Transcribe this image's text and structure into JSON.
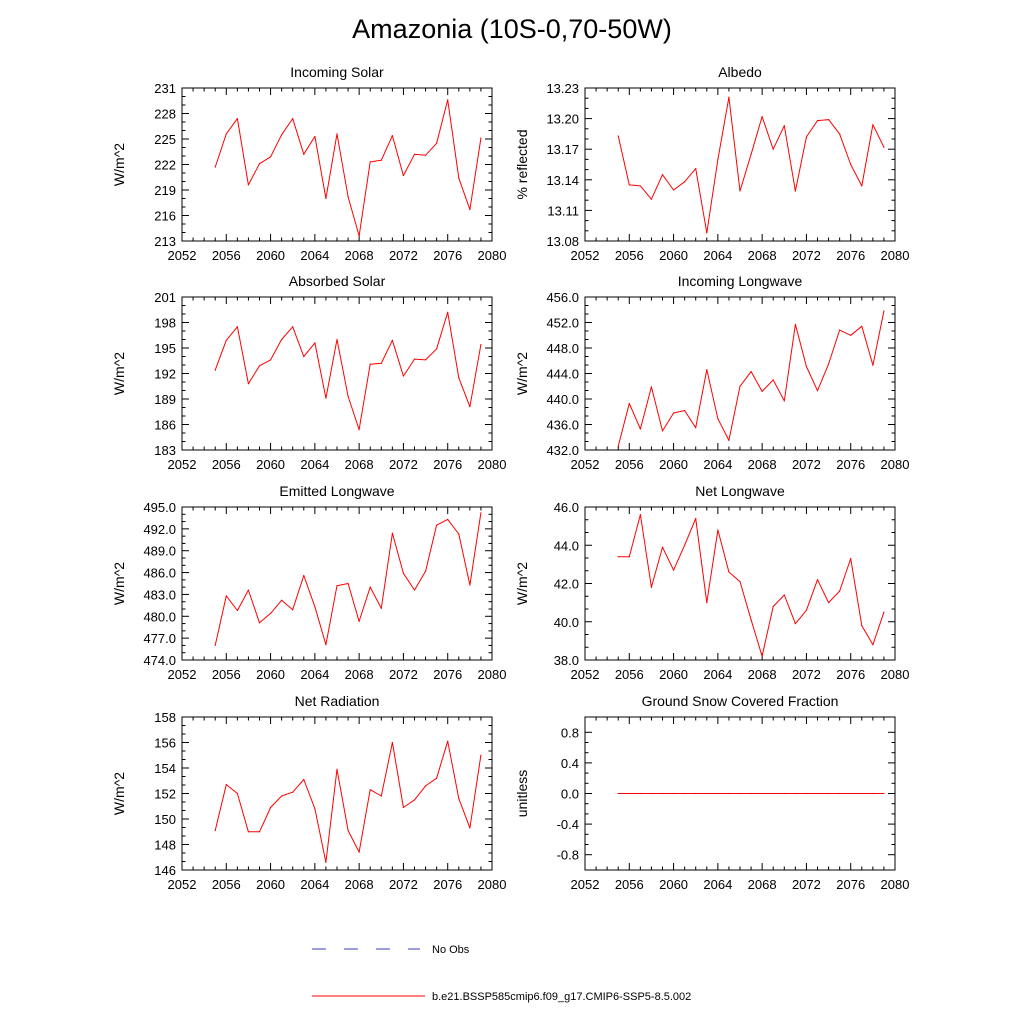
{
  "page": {
    "title": "Amazonia (10S-0,70-50W)"
  },
  "legend": [
    {
      "label": "No Obs",
      "color": "#3b3bc8",
      "style": "dashed"
    },
    {
      "label": "b.e21.BSSP585cmip6.f09_g17.CMIP6-SSP5-8.5.002",
      "color": "#ff0000",
      "style": "solid"
    }
  ],
  "chart_data": [
    {
      "type": "line",
      "title": "Incoming Solar",
      "xlabel": "",
      "ylabel": "W/m^2",
      "xlim": [
        2052,
        2080
      ],
      "ylim": [
        213,
        231
      ],
      "x_ticks": [
        "2052",
        "2056",
        "2060",
        "2064",
        "2068",
        "2072",
        "2076",
        "2080"
      ],
      "y_ticks": [
        "213",
        "216",
        "219",
        "222",
        "225",
        "228",
        "231"
      ],
      "series": [
        {
          "color": "#ff0000",
          "x": [
            2055,
            2056,
            2057,
            2058,
            2059,
            2060,
            2061,
            2062,
            2063,
            2064,
            2065,
            2066,
            2067,
            2068,
            2069,
            2070,
            2071,
            2072,
            2073,
            2074,
            2075,
            2076,
            2077,
            2078,
            2079
          ],
          "values": [
            221.7,
            225.6,
            227.4,
            219.6,
            222.1,
            222.9,
            225.5,
            227.4,
            223.2,
            225.3,
            218.0,
            225.6,
            218.2,
            213.6,
            222.3,
            222.5,
            225.4,
            220.7,
            223.2,
            223.1,
            224.5,
            229.6,
            220.4,
            216.7,
            225.1
          ]
        }
      ]
    },
    {
      "type": "line",
      "title": "Albedo",
      "xlabel": "",
      "ylabel": "% reflected",
      "xlim": [
        2052,
        2080
      ],
      "ylim": [
        13.08,
        13.23
      ],
      "x_ticks": [
        "2052",
        "2056",
        "2060",
        "2064",
        "2068",
        "2072",
        "2076",
        "2080"
      ],
      "y_ticks": [
        "13.08",
        "13.11",
        "13.14",
        "13.17",
        "13.20",
        "13.23"
      ],
      "series": [
        {
          "color": "#ff0000",
          "x": [
            2055,
            2056,
            2057,
            2058,
            2059,
            2060,
            2061,
            2062,
            2063,
            2064,
            2065,
            2066,
            2067,
            2068,
            2069,
            2070,
            2071,
            2072,
            2073,
            2074,
            2075,
            2076,
            2077,
            2078,
            2079
          ],
          "values": [
            13.183,
            13.135,
            13.134,
            13.121,
            13.145,
            13.13,
            13.138,
            13.151,
            13.088,
            13.16,
            13.221,
            13.129,
            13.165,
            13.202,
            13.17,
            13.193,
            13.129,
            13.182,
            13.198,
            13.199,
            13.185,
            13.155,
            13.134,
            13.194,
            13.172
          ]
        }
      ]
    },
    {
      "type": "line",
      "title": "Absorbed Solar",
      "xlabel": "",
      "ylabel": "W/m^2",
      "xlim": [
        2052,
        2080
      ],
      "ylim": [
        183,
        201
      ],
      "x_ticks": [
        "2052",
        "2056",
        "2060",
        "2064",
        "2068",
        "2072",
        "2076",
        "2080"
      ],
      "y_ticks": [
        "183",
        "186",
        "189",
        "192",
        "195",
        "198",
        "201"
      ],
      "series": [
        {
          "color": "#ff0000",
          "x": [
            2055,
            2056,
            2057,
            2058,
            2059,
            2060,
            2061,
            2062,
            2063,
            2064,
            2065,
            2066,
            2067,
            2068,
            2069,
            2070,
            2071,
            2072,
            2073,
            2074,
            2075,
            2076,
            2077,
            2078,
            2079
          ],
          "values": [
            192.4,
            195.9,
            197.5,
            190.8,
            192.9,
            193.6,
            196.0,
            197.5,
            194.0,
            195.6,
            189.1,
            196.0,
            189.3,
            185.4,
            193.1,
            193.2,
            195.9,
            191.7,
            193.7,
            193.6,
            194.9,
            199.2,
            191.5,
            188.1,
            195.4
          ]
        }
      ]
    },
    {
      "type": "line",
      "title": "Incoming Longwave",
      "xlabel": "",
      "ylabel": "W/m^2",
      "xlim": [
        2052,
        2080
      ],
      "ylim": [
        432.0,
        456.0
      ],
      "x_ticks": [
        "2052",
        "2056",
        "2060",
        "2064",
        "2068",
        "2072",
        "2076",
        "2080"
      ],
      "y_ticks": [
        "432.0",
        "436.0",
        "440.0",
        "444.0",
        "448.0",
        "452.0",
        "456.0"
      ],
      "series": [
        {
          "color": "#ff0000",
          "x": [
            2055,
            2056,
            2057,
            2058,
            2059,
            2060,
            2061,
            2062,
            2063,
            2064,
            2065,
            2066,
            2067,
            2068,
            2069,
            2070,
            2071,
            2072,
            2073,
            2074,
            2075,
            2076,
            2077,
            2078,
            2079
          ],
          "values": [
            432.6,
            439.3,
            435.3,
            441.9,
            435.0,
            437.8,
            438.2,
            435.5,
            444.6,
            436.9,
            433.5,
            442.0,
            444.3,
            441.2,
            443.0,
            439.7,
            451.7,
            445.1,
            441.3,
            445.5,
            450.8,
            450.0,
            451.4,
            445.3,
            453.8
          ]
        }
      ]
    },
    {
      "type": "line",
      "title": "Emitted Longwave",
      "xlabel": "",
      "ylabel": "W/m^2",
      "xlim": [
        2052,
        2080
      ],
      "ylim": [
        474.0,
        495.0
      ],
      "x_ticks": [
        "2052",
        "2056",
        "2060",
        "2064",
        "2068",
        "2072",
        "2076",
        "2080"
      ],
      "y_ticks": [
        "474.0",
        "477.0",
        "480.0",
        "483.0",
        "486.0",
        "489.0",
        "492.0",
        "495.0"
      ],
      "series": [
        {
          "color": "#ff0000",
          "x": [
            2055,
            2056,
            2057,
            2058,
            2059,
            2060,
            2061,
            2062,
            2063,
            2064,
            2065,
            2066,
            2067,
            2068,
            2069,
            2070,
            2071,
            2072,
            2073,
            2074,
            2075,
            2076,
            2077,
            2078,
            2079
          ],
          "values": [
            476.0,
            482.8,
            480.8,
            483.6,
            479.1,
            480.4,
            482.2,
            480.9,
            485.6,
            481.3,
            476.1,
            484.2,
            484.5,
            479.3,
            484.0,
            481.1,
            491.4,
            485.9,
            483.6,
            486.2,
            492.5,
            493.3,
            491.3,
            484.3,
            494.2
          ]
        }
      ]
    },
    {
      "type": "line",
      "title": "Net Longwave",
      "xlabel": "",
      "ylabel": "W/m^2",
      "xlim": [
        2052,
        2080
      ],
      "ylim": [
        38.0,
        46.0
      ],
      "x_ticks": [
        "2052",
        "2056",
        "2060",
        "2064",
        "2068",
        "2072",
        "2076",
        "2080"
      ],
      "y_ticks": [
        "38.0",
        "40.0",
        "42.0",
        "44.0",
        "46.0"
      ],
      "series": [
        {
          "color": "#ff0000",
          "x": [
            2055,
            2056,
            2057,
            2058,
            2059,
            2060,
            2061,
            2062,
            2063,
            2064,
            2065,
            2066,
            2067,
            2068,
            2069,
            2070,
            2071,
            2072,
            2073,
            2074,
            2075,
            2076,
            2077,
            2078,
            2079
          ],
          "values": [
            43.4,
            43.4,
            45.6,
            41.8,
            43.9,
            42.7,
            44.0,
            45.4,
            41.0,
            44.8,
            42.6,
            42.1,
            40.1,
            38.2,
            40.8,
            41.4,
            39.9,
            40.6,
            42.2,
            41.0,
            41.6,
            43.3,
            39.8,
            38.8,
            40.5
          ]
        }
      ]
    },
    {
      "type": "line",
      "title": "Net Radiation",
      "xlabel": "",
      "ylabel": "W/m^2",
      "xlim": [
        2052,
        2080
      ],
      "ylim": [
        146,
        158
      ],
      "x_ticks": [
        "2052",
        "2056",
        "2060",
        "2064",
        "2068",
        "2072",
        "2076",
        "2080"
      ],
      "y_ticks": [
        "146",
        "148",
        "150",
        "152",
        "154",
        "156",
        "158"
      ],
      "series": [
        {
          "color": "#ff0000",
          "x": [
            2055,
            2056,
            2057,
            2058,
            2059,
            2060,
            2061,
            2062,
            2063,
            2064,
            2065,
            2066,
            2067,
            2068,
            2069,
            2070,
            2071,
            2072,
            2073,
            2074,
            2075,
            2076,
            2077,
            2078,
            2079
          ],
          "values": [
            149.1,
            152.7,
            152.0,
            149.0,
            149.0,
            150.9,
            151.8,
            152.1,
            153.1,
            150.8,
            146.6,
            153.9,
            149.1,
            147.4,
            152.3,
            151.8,
            156.0,
            150.9,
            151.5,
            152.6,
            153.2,
            156.1,
            151.6,
            149.3,
            155.0
          ]
        }
      ]
    },
    {
      "type": "line",
      "title": "Ground Snow Covered Fraction",
      "xlabel": "",
      "ylabel": "unitless",
      "xlim": [
        2052,
        2080
      ],
      "ylim": [
        -1.0,
        1.0
      ],
      "x_ticks": [
        "2052",
        "2056",
        "2060",
        "2064",
        "2068",
        "2072",
        "2076",
        "2080"
      ],
      "y_ticks": [
        "-0.8",
        "-0.4",
        "0.0",
        "0.4",
        "0.8"
      ],
      "y_tick_values": [
        -0.8,
        -0.4,
        0.0,
        0.4,
        0.8
      ],
      "series": [
        {
          "color": "#ff0000",
          "x": [
            2055,
            2056,
            2057,
            2058,
            2059,
            2060,
            2061,
            2062,
            2063,
            2064,
            2065,
            2066,
            2067,
            2068,
            2069,
            2070,
            2071,
            2072,
            2073,
            2074,
            2075,
            2076,
            2077,
            2078,
            2079
          ],
          "values": [
            0,
            0,
            0,
            0,
            0,
            0,
            0,
            0,
            0,
            0,
            0,
            0,
            0,
            0,
            0,
            0,
            0,
            0,
            0,
            0,
            0,
            0,
            0,
            0,
            0
          ]
        }
      ]
    }
  ]
}
